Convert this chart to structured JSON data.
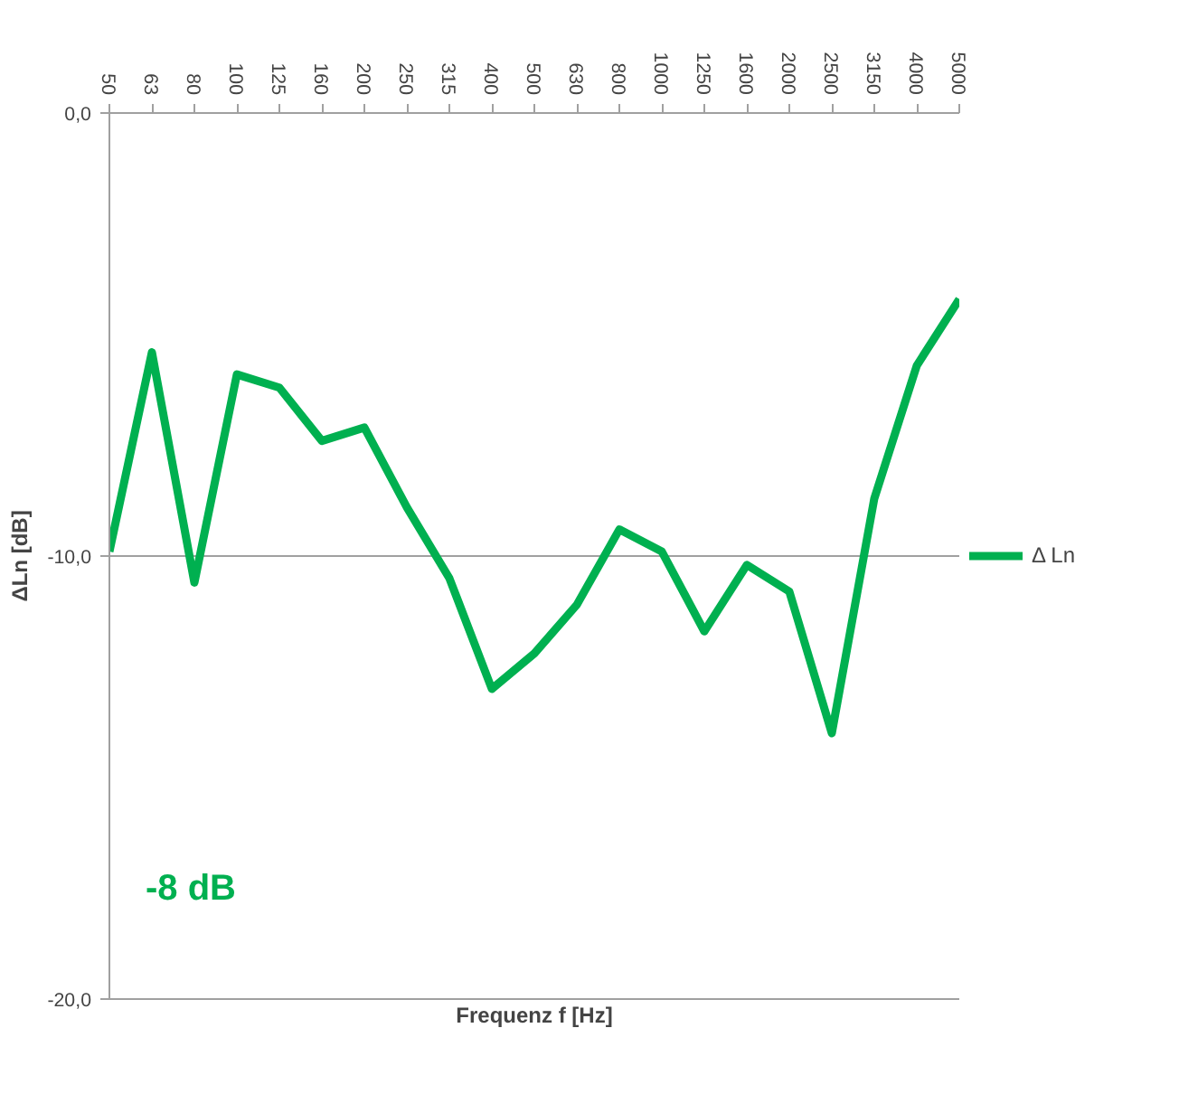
{
  "chart_data": {
    "type": "line",
    "xlabel": "Frequenz f [Hz]",
    "ylabel": "ΔLn [dB]",
    "categories": [
      "50",
      "63",
      "80",
      "100",
      "125",
      "160",
      "200",
      "250",
      "315",
      "400",
      "500",
      "630",
      "800",
      "1000",
      "1250",
      "1600",
      "2000",
      "2500",
      "3150",
      "4000",
      "5000"
    ],
    "series": [
      {
        "name": "Δ Ln",
        "color": "#00b050",
        "values": [
          -9.9,
          -5.4,
          -10.6,
          -5.9,
          -6.2,
          -7.4,
          -7.1,
          -8.9,
          -10.5,
          -13.0,
          -12.2,
          -11.1,
          -9.4,
          -9.9,
          -11.7,
          -10.2,
          -10.8,
          -14.0,
          -8.7,
          -5.7,
          -4.2
        ]
      }
    ],
    "ylim": [
      -20,
      0
    ],
    "yticks": [
      {
        "value": 0,
        "label": "0,0"
      },
      {
        "value": -10,
        "label": "-10,0"
      },
      {
        "value": -20,
        "label": "-20,0"
      }
    ],
    "grid": "y",
    "legend": "right",
    "marker": "none",
    "line_style": "solid",
    "annotations": [
      "-8 dB"
    ]
  }
}
